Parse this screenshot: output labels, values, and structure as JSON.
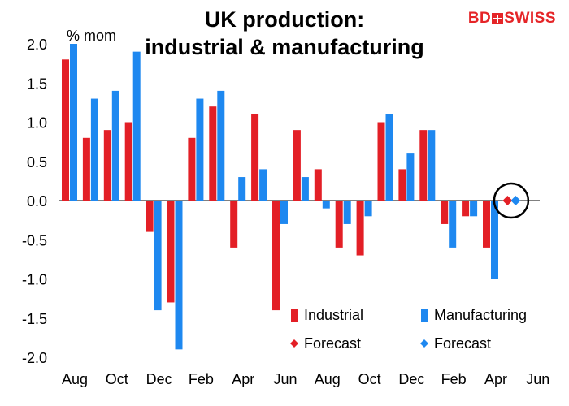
{
  "title_line1": "UK production:",
  "title_line2": "industrial & manufacturing",
  "unit": "% mom",
  "brand": {
    "part1": "BD",
    "part2": "SWISS"
  },
  "colors": {
    "industrial": "#e31f26",
    "manufacturing": "#1e88f0",
    "forecast_circle": "#000000"
  },
  "chart_data": {
    "type": "bar",
    "ylim": [
      -2.0,
      2.0
    ],
    "yticks": [
      "2.0",
      "1.5",
      "1.0",
      "0.5",
      "0.0",
      "-0.5",
      "-1.0",
      "-1.5",
      "-2.0"
    ],
    "ytick_values": [
      2.0,
      1.5,
      1.0,
      0.5,
      0.0,
      -0.5,
      -1.0,
      -1.5,
      -2.0
    ],
    "categories": [
      "Aug",
      "Sep",
      "Oct",
      "Nov",
      "Dec",
      "Jan",
      "Feb",
      "Mar",
      "Apr",
      "May",
      "Jun",
      "Jul",
      "Aug",
      "Sep",
      "Oct",
      "Nov",
      "Dec",
      "Jan",
      "Feb",
      "Mar",
      "Apr",
      "May",
      "Jun"
    ],
    "xtick_labels": [
      "Aug",
      "Oct",
      "Dec",
      "Feb",
      "Apr",
      "Jun",
      "Aug",
      "Oct",
      "Dec",
      "Feb",
      "Apr",
      "Jun"
    ],
    "series": [
      {
        "name": "Industrial",
        "color": "#e31f26",
        "values": [
          1.8,
          0.8,
          0.9,
          1.0,
          -0.4,
          -1.3,
          0.8,
          1.2,
          -0.6,
          1.1,
          -1.4,
          0.9,
          0.4,
          -0.6,
          -0.7,
          1.0,
          0.4,
          0.9,
          -0.3,
          -0.2,
          -0.6,
          null,
          null
        ]
      },
      {
        "name": "Manufacturing",
        "color": "#1e88f0",
        "values": [
          2.0,
          1.3,
          1.4,
          1.9,
          -1.4,
          -1.9,
          1.3,
          1.4,
          0.3,
          0.4,
          -0.3,
          0.3,
          -0.1,
          -0.3,
          -0.2,
          1.1,
          0.6,
          0.9,
          -0.6,
          -0.2,
          -1.0,
          null,
          null
        ]
      }
    ],
    "forecast": [
      {
        "name": "Forecast",
        "series": "Industrial",
        "category_index": 21,
        "value": 0.0,
        "color": "#e31f26"
      },
      {
        "name": "Forecast",
        "series": "Manufacturing",
        "category_index": 21,
        "value": 0.0,
        "color": "#1e88f0"
      }
    ],
    "legend": [
      {
        "label": "Industrial",
        "kind": "bar",
        "color": "#e31f26"
      },
      {
        "label": "Manufacturing",
        "kind": "bar",
        "color": "#1e88f0"
      },
      {
        "label": "Forecast",
        "kind": "diamond",
        "color": "#e31f26"
      },
      {
        "label": "Forecast",
        "kind": "diamond",
        "color": "#1e88f0"
      }
    ],
    "legend_position": "bottom-right",
    "grid": false
  }
}
